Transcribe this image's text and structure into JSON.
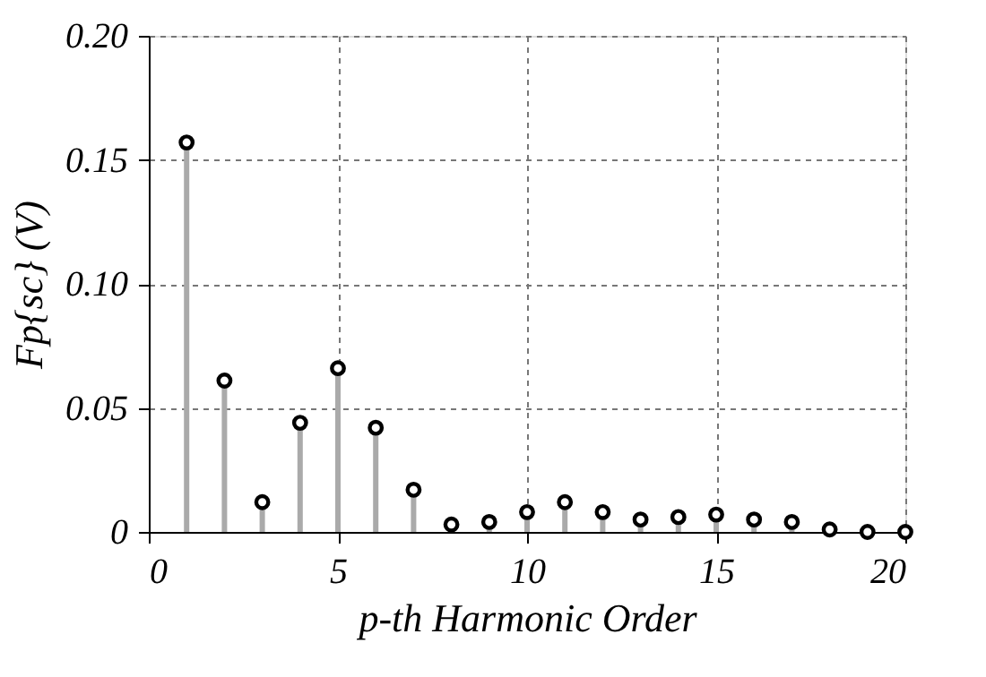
{
  "chart_data": {
    "type": "lollipop",
    "x": [
      1,
      2,
      3,
      4,
      5,
      6,
      7,
      8,
      9,
      10,
      11,
      12,
      13,
      14,
      15,
      16,
      17,
      18,
      19,
      20
    ],
    "series": [
      {
        "color": "#000000",
        "values": [
          0.157,
          0.061,
          0.012,
          0.044,
          0.066,
          0.042,
          0.017,
          0.003,
          0.004,
          0.008,
          0.012,
          0.008,
          0.005,
          0.006,
          0.007,
          0.005,
          0.004,
          0.001,
          0.0,
          0.0
        ]
      }
    ],
    "xlabel": "p-th Harmonic Order",
    "ylabel": "Fp{sc} (V)",
    "xlim": [
      0,
      20
    ],
    "xticks": [
      0,
      5,
      10,
      15,
      20
    ],
    "ylim": [
      0,
      0.2
    ],
    "yticks": [
      {
        "value": 0,
        "label": "0"
      },
      {
        "value": 0.05,
        "label": "0.05"
      },
      {
        "value": 0.1,
        "label": "0.10"
      },
      {
        "value": 0.15,
        "label": "0.15"
      },
      {
        "value": 0.2,
        "label": "0.20"
      }
    ],
    "grid": true,
    "marker": "circle"
  }
}
